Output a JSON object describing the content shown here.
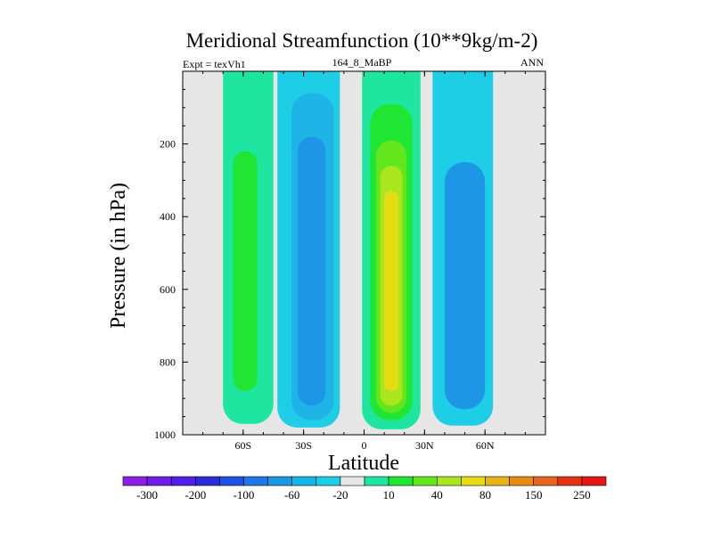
{
  "chart_data": {
    "type": "filled-contour",
    "title": "Meridional Streamfunction (10**9kg/m-2)",
    "left_label": "Expt = texVh1",
    "center_label": "164_8_MaBP",
    "right_label": "ANN",
    "xlabel": "Latitude",
    "ylabel": "Pressure (in hPa)",
    "xlim": [
      -90,
      90
    ],
    "ylim": [
      1000,
      0
    ],
    "x_ticks": [
      {
        "value": -60,
        "label": "60S"
      },
      {
        "value": -30,
        "label": "30S"
      },
      {
        "value": 0,
        "label": "0"
      },
      {
        "value": 30,
        "label": "30N"
      },
      {
        "value": 60,
        "label": "60N"
      }
    ],
    "y_ticks": [
      {
        "value": 200,
        "label": "200"
      },
      {
        "value": 400,
        "label": "400"
      },
      {
        "value": 600,
        "label": "600"
      },
      {
        "value": 800,
        "label": "800"
      },
      {
        "value": 1000,
        "label": "1000"
      }
    ],
    "colorbar": {
      "colors": [
        "#8c1ee6",
        "#6e1ee6",
        "#501ee6",
        "#2d2dd7",
        "#1e50e6",
        "#1e78e6",
        "#1e96e6",
        "#14b4e6",
        "#1ecde6",
        "#e6e6e6",
        "#1ee6a0",
        "#1ee632",
        "#64e61e",
        "#aae61e",
        "#e6dc14",
        "#e6b414",
        "#e68c14",
        "#e6641e",
        "#e63214",
        "#e61414"
      ],
      "labels": [
        {
          "boundary": 1,
          "text": "-300"
        },
        {
          "boundary": 3,
          "text": "-200"
        },
        {
          "boundary": 5,
          "text": "-100"
        },
        {
          "boundary": 7,
          "text": "-60"
        },
        {
          "boundary": 9,
          "text": "-20"
        },
        {
          "boundary": 11,
          "text": "10"
        },
        {
          "boundary": 13,
          "text": "40"
        },
        {
          "boundary": 15,
          "text": "80"
        },
        {
          "boundary": 17,
          "text": "150"
        },
        {
          "boundary": 19,
          "text": "250"
        }
      ]
    },
    "background_color": "#e6e6e6",
    "cells": [
      {
        "name": "nh-outer-cell",
        "color": "#1ecde6",
        "lat_range": [
          34,
          64
        ],
        "p_range": [
          0,
          975
        ]
      },
      {
        "name": "nh-outer-cell-core",
        "color": "#1e96e6",
        "lat_range": [
          40,
          60
        ],
        "p_range": [
          250,
          930
        ]
      },
      {
        "name": "hadley-nh-cell",
        "color": "#1ee6a0",
        "lat_range": [
          -1,
          28
        ],
        "p_range": [
          0,
          985
        ]
      },
      {
        "name": "hadley-nh-cell-level2",
        "color": "#1ee632",
        "lat_range": [
          3,
          24
        ],
        "p_range": [
          90,
          960
        ]
      },
      {
        "name": "hadley-nh-cell-level3",
        "color": "#64e61e",
        "lat_range": [
          6,
          21
        ],
        "p_range": [
          190,
          940
        ]
      },
      {
        "name": "hadley-nh-cell-level4",
        "color": "#aae61e",
        "lat_range": [
          8,
          19
        ],
        "p_range": [
          260,
          920
        ]
      },
      {
        "name": "hadley-nh-cell-core",
        "color": "#e6dc14",
        "lat_range": [
          10,
          17
        ],
        "p_range": [
          330,
          880
        ]
      },
      {
        "name": "sh-tropical-cell",
        "color": "#1ecde6",
        "lat_range": [
          -43,
          -12
        ],
        "p_range": [
          0,
          980
        ]
      },
      {
        "name": "sh-tropical-cell-level2",
        "color": "#1eb4e6",
        "lat_range": [
          -36,
          -15
        ],
        "p_range": [
          60,
          960
        ]
      },
      {
        "name": "sh-tropical-cell-core",
        "color": "#1e96e6",
        "lat_range": [
          -33,
          -19
        ],
        "p_range": [
          180,
          920
        ]
      },
      {
        "name": "sh-ferrel-cell",
        "color": "#1ee6a0",
        "lat_range": [
          -70,
          -45
        ],
        "p_range": [
          0,
          970
        ]
      },
      {
        "name": "sh-ferrel-cell-core",
        "color": "#1ee632",
        "lat_range": [
          -65,
          -53
        ],
        "p_range": [
          220,
          880
        ]
      }
    ]
  }
}
